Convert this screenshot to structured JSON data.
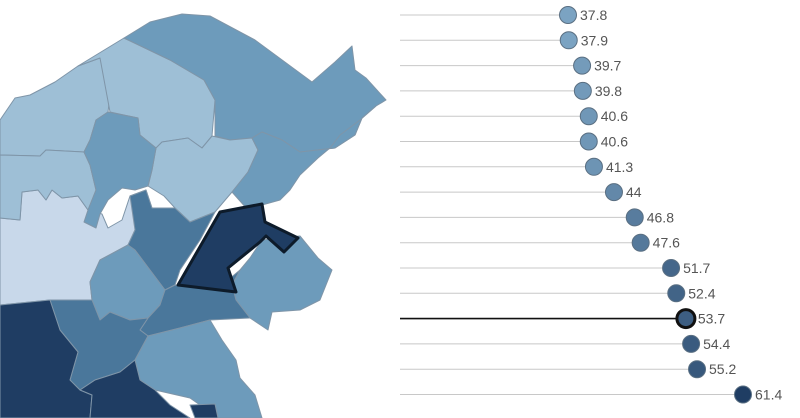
{
  "chart_data": [
    {
      "type": "map",
      "title": "",
      "highlighted_region_value": 53.7,
      "colors": {
        "lightest": "#c8d8ea",
        "light": "#9ebfd6",
        "mid": "#6d9bbb",
        "mid_dark": "#4a779b",
        "dark": "#1f3d63",
        "border": "#7f95a8",
        "highlight_border": "#0d1b2a"
      }
    },
    {
      "type": "lollipop",
      "title": "",
      "xlabel": "",
      "ylabel": "",
      "grid": false,
      "legend": "none",
      "highlighted_value": 53.7,
      "values": [
        37.8,
        37.9,
        39.7,
        39.8,
        40.6,
        40.6,
        41.3,
        44,
        46.8,
        47.6,
        51.7,
        52.4,
        53.7,
        54.4,
        55.2,
        61.4
      ],
      "colors": {
        "line": "#c8c8c8",
        "highlight_line": "#111111",
        "scale_low": "#7ba3c2",
        "scale_high": "#1f3d63",
        "label_text": "#555555"
      }
    }
  ]
}
